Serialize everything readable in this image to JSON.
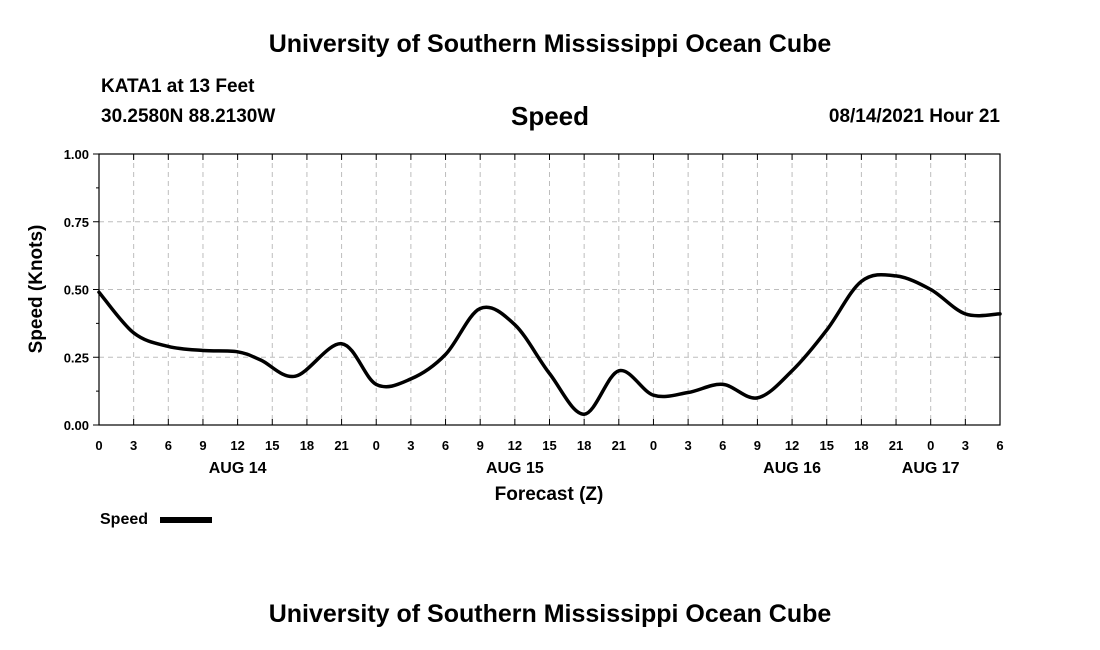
{
  "header": {
    "title_top": "University of Southern Mississippi Ocean Cube",
    "title_bottom": "University of Southern Mississippi Ocean Cube",
    "station": "KATA1 at 13 Feet",
    "coords": "30.2580N  88.2130W",
    "timestamp": "08/14/2021 Hour 21"
  },
  "legend": {
    "label": "Speed"
  },
  "chart_data": {
    "type": "line",
    "title": "Speed",
    "xlabel": "Forecast (Z)",
    "ylabel": "Speed (Knots)",
    "ylim": [
      0,
      1
    ],
    "y_ticks": [
      "0.00",
      "0.25",
      "0.50",
      "0.75",
      "1.00"
    ],
    "x_tick_labels": [
      "0",
      "3",
      "6",
      "9",
      "12",
      "15",
      "18",
      "21",
      "0",
      "3",
      "6",
      "9",
      "12",
      "15",
      "18",
      "21",
      "0",
      "3",
      "6",
      "9",
      "12",
      "15",
      "18",
      "21",
      "0",
      "3",
      "6"
    ],
    "day_labels": [
      "AUG 14",
      "AUG 15",
      "AUG 16",
      "AUG 17"
    ],
    "grid": true,
    "series": [
      {
        "name": "Speed",
        "color": "#000000",
        "x": [
          0,
          3,
          6,
          9,
          12,
          14,
          17,
          21,
          24,
          27,
          30,
          33,
          36,
          39,
          42,
          45,
          48,
          51,
          54,
          57,
          60,
          63,
          66,
          69,
          72,
          75,
          78
        ],
        "values": [
          0.49,
          0.34,
          0.29,
          0.275,
          0.27,
          0.24,
          0.18,
          0.3,
          0.15,
          0.17,
          0.26,
          0.43,
          0.37,
          0.19,
          0.04,
          0.2,
          0.11,
          0.12,
          0.15,
          0.1,
          0.2,
          0.35,
          0.53,
          0.55,
          0.5,
          0.41,
          0.41
        ]
      }
    ]
  }
}
